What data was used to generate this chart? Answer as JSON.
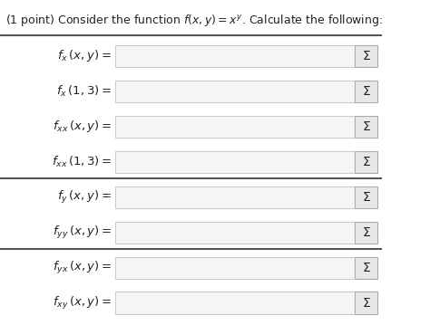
{
  "title": "(1 point) Consider the function $f(x, y) = x^y$. Calculate the following:",
  "rows": [
    {
      "label": "$f_x\\,(x, y) =$",
      "has_thick_top": false
    },
    {
      "label": "$f_x\\,(1, 3) =$",
      "has_thick_top": false
    },
    {
      "label": "$f_{xx}\\,(x, y) =$",
      "has_thick_top": false
    },
    {
      "label": "$f_{xx}\\,(1, 3) =$",
      "has_thick_top": false
    },
    {
      "label": "$f_y\\,(x, y) =$",
      "has_thick_top": true
    },
    {
      "label": "$f_{yy}\\,(x, y) =$",
      "has_thick_top": false
    },
    {
      "label": "$f_{yx}\\,(x, y) =$",
      "has_thick_top": true
    },
    {
      "label": "$f_{xy}\\,(x, y) =$",
      "has_thick_top": false
    }
  ],
  "bg_color": "#ffffff",
  "box_bg": "#f5f5f5",
  "box_border": "#cccccc",
  "sigma_box_bg": "#e8e8e8",
  "sigma_box_border": "#aaaaaa",
  "text_color": "#222222",
  "title_fontsize": 9.0,
  "label_fontsize": 9.5,
  "sigma_fontsize": 10,
  "thick_line_color": "#555555",
  "thin_line_color": "#cccccc"
}
